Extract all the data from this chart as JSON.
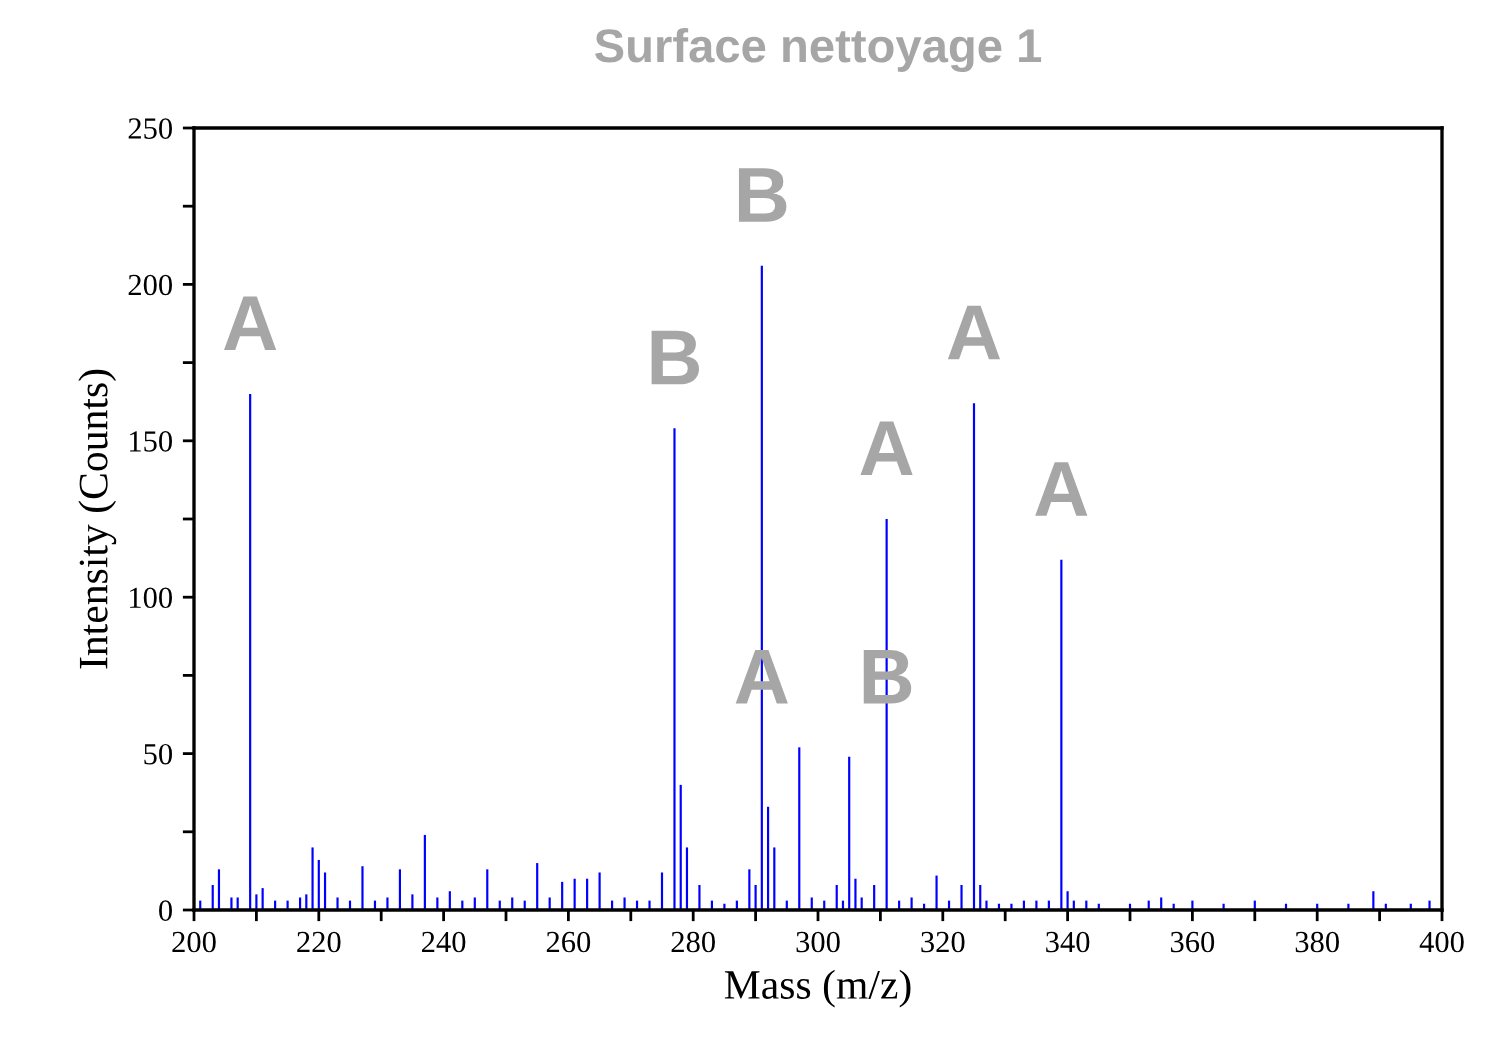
{
  "chart_data": {
    "type": "bar",
    "title": "Surface nettoyage 1",
    "xlabel": "Mass (m/z)",
    "ylabel": "Intensity (Counts)",
    "x": [
      201,
      203,
      204,
      206,
      207,
      209,
      210,
      211,
      213,
      215,
      217,
      218,
      219,
      220,
      221,
      223,
      225,
      227,
      229,
      231,
      233,
      235,
      237,
      239,
      241,
      243,
      245,
      247,
      249,
      251,
      253,
      255,
      257,
      259,
      261,
      263,
      265,
      267,
      269,
      271,
      273,
      275,
      277,
      278,
      279,
      281,
      283,
      285,
      287,
      289,
      290,
      291,
      292,
      293,
      295,
      297,
      299,
      301,
      303,
      304,
      305,
      306,
      307,
      309,
      311,
      313,
      315,
      317,
      319,
      321,
      323,
      325,
      326,
      327,
      329,
      331,
      333,
      335,
      337,
      339,
      340,
      341,
      343,
      345,
      350,
      353,
      355,
      357,
      360,
      365,
      370,
      375,
      380,
      385,
      389,
      391,
      395,
      398
    ],
    "values": [
      3,
      8,
      13,
      4,
      4,
      165,
      5,
      7,
      3,
      3,
      4,
      5,
      20,
      16,
      12,
      4,
      3,
      14,
      3,
      4,
      13,
      5,
      24,
      4,
      6,
      3,
      4,
      13,
      3,
      4,
      3,
      15,
      4,
      9,
      10,
      10,
      12,
      3,
      4,
      3,
      3,
      12,
      154,
      40,
      20,
      8,
      3,
      2,
      3,
      13,
      8,
      206,
      33,
      20,
      3,
      52,
      4,
      3,
      8,
      3,
      49,
      10,
      4,
      8,
      125,
      3,
      4,
      2,
      11,
      3,
      8,
      162,
      8,
      3,
      2,
      2,
      3,
      3,
      3,
      112,
      6,
      3,
      3,
      2,
      2,
      3,
      4,
      2,
      3,
      2,
      3,
      2,
      2,
      2,
      6,
      2,
      2,
      3
    ],
    "color": "#0000ff",
    "xlim": [
      200,
      400
    ],
    "xticks": [
      200,
      {
        "value": 210,
        "label": null
      },
      220,
      {
        "value": 230,
        "label": null
      },
      240,
      {
        "value": 250,
        "label": null
      },
      260,
      {
        "value": 270,
        "label": null
      },
      280,
      {
        "value": 290,
        "label": null
      },
      300,
      {
        "value": 310,
        "label": null
      },
      320,
      {
        "value": 330,
        "label": null
      },
      340,
      {
        "value": 350,
        "label": null
      },
      360,
      {
        "value": 370,
        "label": null
      },
      380,
      {
        "value": 390,
        "label": null
      },
      400
    ],
    "ylim": [
      0,
      250
    ],
    "yticks": [
      0,
      {
        "value": 25,
        "label": null
      },
      50,
      {
        "value": 75,
        "label": null
      },
      100,
      {
        "value": 125,
        "label": null
      },
      150,
      {
        "value": 175,
        "label": null
      },
      200,
      {
        "value": 225,
        "label": null
      },
      250
    ],
    "grid": false,
    "annotations": [
      {
        "text": "A",
        "x": 209,
        "y": 165
      },
      {
        "text": "B",
        "x": 277,
        "y": 154
      },
      {
        "text": "B",
        "x": 291,
        "y": 206
      },
      {
        "text": "A",
        "x": 291,
        "y": 52
      },
      {
        "text": "A",
        "x": 311,
        "y": 125
      },
      {
        "text": "B",
        "x": 311,
        "y": 52
      },
      {
        "text": "A",
        "x": 325,
        "y": 162
      },
      {
        "text": "A",
        "x": 339,
        "y": 112
      }
    ]
  }
}
